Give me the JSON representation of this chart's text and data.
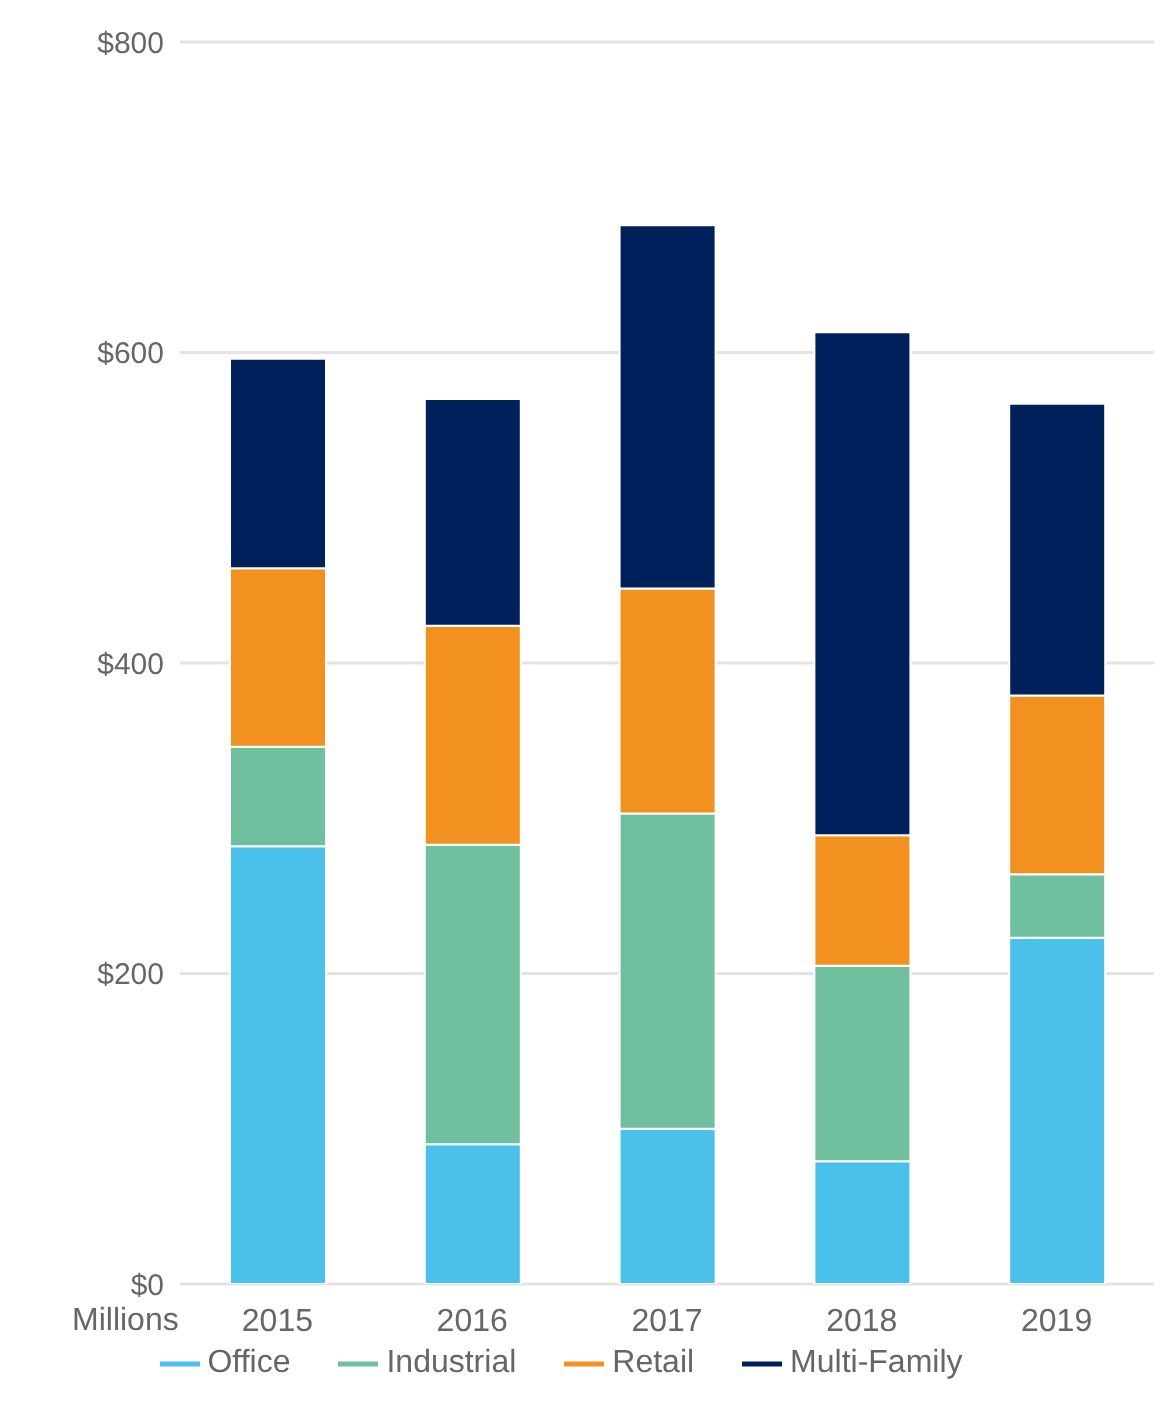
{
  "chart_data": {
    "type": "bar",
    "stacked": true,
    "ylabel": "Millions",
    "categories": [
      "2015",
      "2016",
      "2017",
      "2018",
      "2019"
    ],
    "series": [
      {
        "name": "Office",
        "color": "#4ac0eb",
        "values": [
          282,
          90,
          100,
          79,
          223
        ]
      },
      {
        "name": "Industrial",
        "color": "#70bf9e",
        "values": [
          64,
          193,
          203,
          126,
          41
        ]
      },
      {
        "name": "Retail",
        "color": "#f29120",
        "values": [
          115,
          141,
          145,
          84,
          115
        ]
      },
      {
        "name": "Multi-Family",
        "color": "#00205b",
        "values": [
          135,
          146,
          234,
          324,
          188
        ]
      }
    ],
    "ylim": [
      0,
      800
    ],
    "yticks": [
      {
        "value": 0,
        "label": "$0"
      },
      {
        "value": 200,
        "label": "$200"
      },
      {
        "value": 400,
        "label": "$400"
      },
      {
        "value": 600,
        "label": "$600"
      },
      {
        "value": 800,
        "label": "$800"
      }
    ],
    "grid": "y",
    "legend": "bottom"
  }
}
